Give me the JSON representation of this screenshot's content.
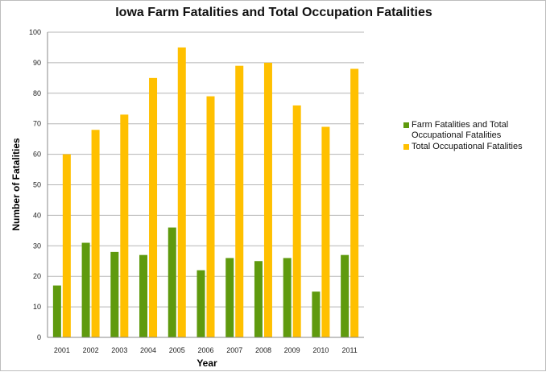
{
  "chart_data": {
    "type": "bar",
    "title": "Iowa Farm Fatalities and Total Occupation Fatalities",
    "xlabel": "Year",
    "ylabel": "Number of Fatalities",
    "categories": [
      "2001",
      "2002",
      "2003",
      "2004",
      "2005",
      "2006",
      "2007",
      "2008",
      "2009",
      "2010",
      "2011"
    ],
    "series": [
      {
        "name": "Farm Fatalities and Total Occupational Fatalities",
        "color": "#5f9a0e",
        "values": [
          17,
          31,
          28,
          27,
          36,
          22,
          26,
          25,
          26,
          15,
          27
        ]
      },
      {
        "name": "Total Occupational Fatalities",
        "color": "#ffc000",
        "values": [
          60,
          68,
          73,
          85,
          95,
          79,
          89,
          90,
          76,
          69,
          88
        ]
      }
    ],
    "ylim": [
      0,
      100
    ],
    "yticks": [
      0,
      10,
      20,
      30,
      40,
      50,
      60,
      70,
      80,
      90,
      100
    ],
    "grid": true,
    "legend_position": "right"
  }
}
